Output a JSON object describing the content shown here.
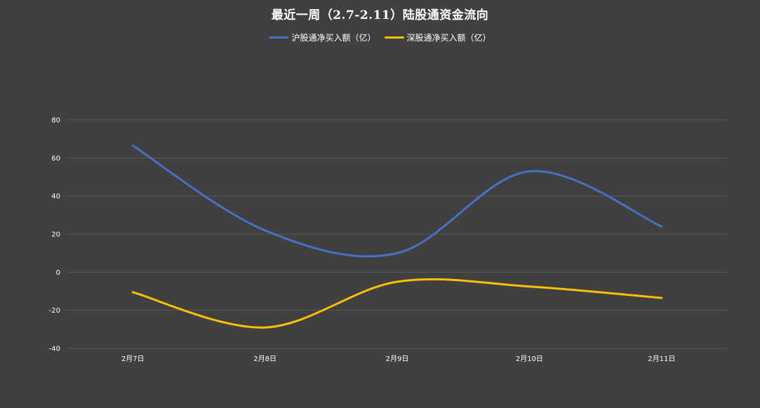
{
  "chart_data": {
    "type": "line",
    "title": "最近一周（2.7-2.11）陆股通资金流向",
    "categories": [
      "2月7日",
      "2月8日",
      "2月9日",
      "2月10日",
      "2月11日"
    ],
    "series": [
      {
        "name": "沪股通净买入额（亿）",
        "color": "#4472C4",
        "values": [
          66.5,
          22,
          10,
          53,
          24
        ]
      },
      {
        "name": "深股通净买入额（亿）",
        "color": "#FFC000",
        "values": [
          -10.5,
          -29,
          -5,
          -7.5,
          -13.5
        ]
      }
    ],
    "ylim": [
      -40,
      80
    ],
    "yticks": [
      -40,
      -20,
      0,
      20,
      40,
      60,
      80
    ],
    "grid": true,
    "legend": "top",
    "background": "#404040",
    "gridline_color": "#595959",
    "text_color": "#ffffff"
  }
}
